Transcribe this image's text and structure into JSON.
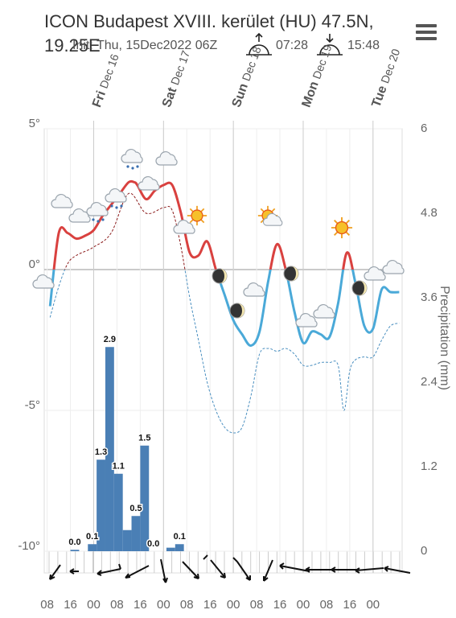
{
  "chart_data": {
    "type": "meteogram",
    "title": "ICON Budapest XVIII. kerület (HU) 47.5N, 19.25E",
    "subtitle": "Init: Thu, 15Dec2022 06Z",
    "sunrise": "07:28",
    "sunset": "15:48",
    "y2_label": "Precipitation (mm)",
    "xlim": [
      7,
      130
    ],
    "xticks": [
      {
        "value": 8,
        "label": "08"
      },
      {
        "value": 16,
        "label": "16"
      },
      {
        "value": 24,
        "label": "00"
      },
      {
        "value": 32,
        "label": "08"
      },
      {
        "value": 40,
        "label": "16"
      },
      {
        "value": 48,
        "label": "00"
      },
      {
        "value": 56,
        "label": "08"
      },
      {
        "value": 64,
        "label": "16"
      },
      {
        "value": 72,
        "label": "00"
      },
      {
        "value": 80,
        "label": "08"
      },
      {
        "value": 88,
        "label": "16"
      },
      {
        "value": 96,
        "label": "00"
      },
      {
        "value": 104,
        "label": "08"
      },
      {
        "value": 112,
        "label": "16"
      },
      {
        "value": 120,
        "label": "00"
      }
    ],
    "days": [
      {
        "day": "Fri",
        "date": "Dec 16",
        "x": 24
      },
      {
        "day": "Sat",
        "date": "Dec 17",
        "x": 48
      },
      {
        "day": "Sun",
        "date": "Dec 18",
        "x": 72
      },
      {
        "day": "Mon",
        "date": "Dec 19",
        "x": 96
      },
      {
        "day": "Tue",
        "date": "Dec 20",
        "x": 120
      }
    ],
    "ylim": [
      -10,
      5
    ],
    "yticks": [
      {
        "value": 5,
        "label": "5°"
      },
      {
        "value": 0,
        "label": "0°"
      },
      {
        "value": -5,
        "label": "-5°"
      },
      {
        "value": -10,
        "label": "-10°"
      }
    ],
    "y2lim": [
      0,
      6
    ],
    "y2ticks": [
      0,
      1.2,
      2.4,
      3.6,
      4.8,
      6
    ],
    "series": [
      {
        "name": "Temperature",
        "color_above_zero": "#d9413f",
        "color_below_zero": "#4aa9d8",
        "dashed": false,
        "x": [
          9,
          12,
          15,
          18,
          21,
          24,
          27,
          30,
          33,
          36,
          38,
          39,
          42,
          45,
          48,
          51,
          54,
          57,
          60,
          63,
          66,
          69,
          72,
          75,
          78,
          81,
          84,
          87,
          90,
          93,
          96,
          99,
          102,
          105,
          108,
          111,
          114,
          117,
          120,
          123,
          126,
          129
        ],
        "values": [
          -1.3,
          1.3,
          1.3,
          1.1,
          1.2,
          1.4,
          1.9,
          2.3,
          2.7,
          3.1,
          3.1,
          3.0,
          2.5,
          2.8,
          3.0,
          3.0,
          2.0,
          0.6,
          0.5,
          1.0,
          0.0,
          -0.9,
          -1.8,
          -2.3,
          -2.7,
          -2.2,
          -0.4,
          0.9,
          0.0,
          -1.5,
          -2.6,
          -2.2,
          -2.3,
          -2.4,
          -1.2,
          0.6,
          -0.5,
          -2.0,
          -2.1,
          -0.7,
          -0.8,
          -0.8
        ]
      },
      {
        "name": "Dew point",
        "color_above_zero": "#8b1a1a",
        "color_below_zero": "#4a8fc0",
        "dashed": true,
        "x": [
          9,
          12,
          15,
          18,
          24,
          30,
          36,
          42,
          48,
          51,
          54,
          57,
          60,
          63,
          66,
          69,
          72,
          75,
          78,
          81,
          84,
          87,
          90,
          93,
          96,
          99,
          102,
          105,
          108,
          110,
          112,
          114,
          117,
          120,
          123,
          126,
          129
        ],
        "values": [
          -1.7,
          -0.6,
          0.2,
          0.5,
          0.8,
          1.3,
          2.7,
          2.0,
          2.2,
          2.1,
          0.8,
          -1.0,
          -2.5,
          -4.0,
          -5.0,
          -5.6,
          -5.8,
          -5.6,
          -4.5,
          -3.0,
          -2.8,
          -2.9,
          -2.8,
          -3.0,
          -3.4,
          -3.4,
          -3.3,
          -3.3,
          -3.4,
          -5.0,
          -3.6,
          -3.2,
          -3.1,
          -3.1,
          -2.5,
          -2.0,
          -1.9
        ]
      }
    ],
    "precipitation": {
      "name": "Precipitation",
      "color": "#4a7fb5",
      "axis": "y2",
      "bins": [
        16,
        19,
        22,
        25,
        28,
        31,
        34,
        37,
        40,
        43,
        46,
        49,
        52,
        55
      ],
      "values": [
        0.02,
        0,
        0.1,
        1.3,
        2.9,
        1.1,
        0.3,
        0.5,
        1.5,
        0.0,
        0,
        0.05,
        0.1
      ],
      "value_labels": [
        "0.0",
        null,
        "0.1",
        "1.3",
        "2.9",
        "1.1",
        null,
        "0.5",
        "1.5",
        "0.0",
        null,
        null,
        "0.1"
      ]
    }
  }
}
